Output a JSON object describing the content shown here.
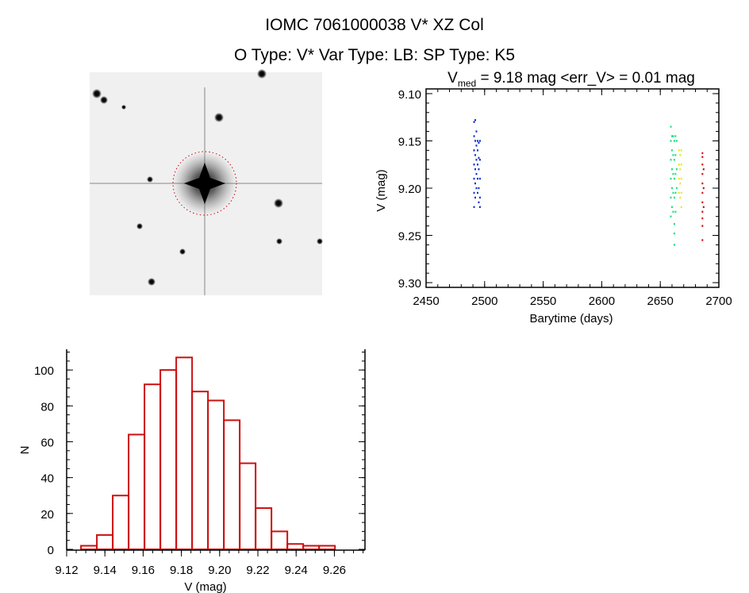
{
  "header": {
    "title": "IOMC 7061000038   V* XZ Col",
    "subtitle": "O Type: V*  Var Type: LB:  SP Type: K5"
  },
  "finder_image": {
    "description_icon": "sky-image",
    "circle_color": "#cc0000"
  },
  "chart_data": [
    {
      "type": "scatter",
      "title_main": "V",
      "title_sub": "med",
      "title_rest": " = 9.18 mag <err_V> = 0.01 mag",
      "xlabel": "Barytime (days)",
      "ylabel": "V (mag)",
      "xlim": [
        2450,
        2700
      ],
      "ylim": [
        9.095,
        9.305
      ],
      "y_inverted": true,
      "xticks": [
        "2450",
        "2500",
        "2550",
        "2600",
        "2650",
        "2700"
      ],
      "yticks": [
        "9.10",
        "9.15",
        "9.20",
        "9.25",
        "9.30"
      ],
      "series": [
        {
          "color": "#1030d0",
          "points": [
            [
              2491,
              9.13
            ],
            [
              2491,
              9.145
            ],
            [
              2491,
              9.16
            ],
            [
              2491,
              9.175
            ],
            [
              2491,
              9.19
            ],
            [
              2491,
              9.205
            ],
            [
              2491,
              9.22
            ],
            [
              2492,
              9.128
            ],
            [
              2492,
              9.15
            ],
            [
              2492,
              9.165
            ],
            [
              2492,
              9.18
            ],
            [
              2492,
              9.195
            ],
            [
              2492,
              9.21
            ],
            [
              2493,
              9.14
            ],
            [
              2493,
              9.155
            ],
            [
              2493,
              9.17
            ],
            [
              2493,
              9.185
            ],
            [
              2493,
              9.2
            ],
            [
              2494,
              9.15
            ],
            [
              2494,
              9.16
            ],
            [
              2494,
              9.175
            ],
            [
              2494,
              9.19
            ],
            [
              2494,
              9.205
            ],
            [
              2495,
              9.152
            ],
            [
              2495,
              9.168
            ],
            [
              2495,
              9.18
            ],
            [
              2495,
              9.2
            ],
            [
              2495,
              9.215
            ],
            [
              2496,
              9.15
            ],
            [
              2496,
              9.17
            ],
            [
              2496,
              9.19
            ],
            [
              2496,
              9.21
            ],
            [
              2496,
              9.22
            ]
          ]
        },
        {
          "color": "#20e080",
          "points": [
            [
              2659,
              9.135
            ],
            [
              2659,
              9.15
            ],
            [
              2659,
              9.17
            ],
            [
              2659,
              9.19
            ],
            [
              2659,
              9.21
            ],
            [
              2659,
              9.23
            ],
            [
              2660,
              9.145
            ],
            [
              2660,
              9.16
            ],
            [
              2660,
              9.18
            ],
            [
              2660,
              9.2
            ],
            [
              2660,
              9.22
            ],
            [
              2661,
              9.145
            ],
            [
              2661,
              9.165
            ],
            [
              2661,
              9.185
            ],
            [
              2661,
              9.205
            ],
            [
              2661,
              9.225
            ],
            [
              2662,
              9.15
            ],
            [
              2662,
              9.17
            ],
            [
              2662,
              9.19
            ],
            [
              2662,
              9.21
            ],
            [
              2662,
              9.238
            ],
            [
              2662,
              9.248
            ],
            [
              2662,
              9.26
            ],
            [
              2663,
              9.145
            ],
            [
              2663,
              9.165
            ],
            [
              2663,
              9.185
            ],
            [
              2663,
              9.205
            ],
            [
              2663,
              9.225
            ],
            [
              2664,
              9.15
            ],
            [
              2664,
              9.18
            ],
            [
              2664,
              9.2
            ]
          ]
        },
        {
          "color": "#e8e820",
          "points": [
            [
              2666,
              9.16
            ],
            [
              2666,
              9.175
            ],
            [
              2666,
              9.19
            ],
            [
              2666,
              9.205
            ],
            [
              2667,
              9.165
            ],
            [
              2667,
              9.18
            ],
            [
              2667,
              9.195
            ],
            [
              2667,
              9.21
            ],
            [
              2668,
              9.16
            ],
            [
              2668,
              9.175
            ],
            [
              2668,
              9.19
            ],
            [
              2668,
              9.205
            ],
            [
              2668,
              9.22
            ]
          ]
        },
        {
          "color": "#d01010",
          "points": [
            [
              2686,
              9.163
            ],
            [
              2686,
              9.167
            ],
            [
              2686,
              9.175
            ],
            [
              2686,
              9.185
            ],
            [
              2686,
              9.195
            ],
            [
              2686,
              9.205
            ],
            [
              2686,
              9.215
            ],
            [
              2686,
              9.225
            ],
            [
              2686,
              9.232
            ],
            [
              2686,
              9.24
            ],
            [
              2686,
              9.255
            ],
            [
              2687,
              9.18
            ],
            [
              2687,
              9.2
            ],
            [
              2687,
              9.22
            ]
          ]
        }
      ]
    },
    {
      "type": "bar",
      "subtype": "histogram",
      "xlabel": "V (mag)",
      "ylabel": "N",
      "xlim": [
        9.12,
        9.276
      ],
      "ylim": [
        0,
        112
      ],
      "xticks": [
        "9.12",
        "9.14",
        "9.16",
        "9.18",
        "9.20",
        "9.22",
        "9.24",
        "9.26"
      ],
      "yticks": [
        "0",
        "20",
        "40",
        "60",
        "80",
        "100"
      ],
      "bar_color": "#cc1111",
      "bin_start": 9.1275,
      "bin_width": 0.0083,
      "values": [
        2,
        8,
        30,
        64,
        92,
        100,
        107,
        88,
        83,
        72,
        48,
        23,
        10,
        3,
        2,
        2
      ]
    }
  ]
}
